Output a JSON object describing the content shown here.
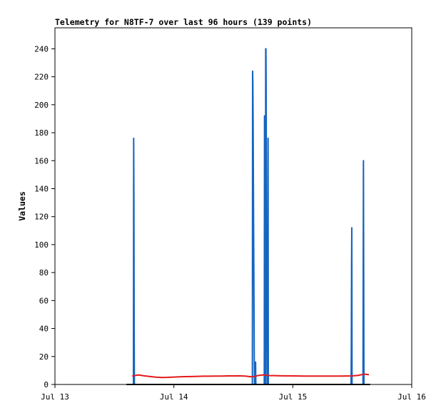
{
  "chart_data": {
    "type": "line",
    "title": "Telemetry for N8TF-7 over last 96 hours (139 points)",
    "xlabel": "",
    "ylabel": "Values",
    "x_ticks": [
      "Jul 13",
      "Jul 14",
      "Jul 15",
      "Jul 16"
    ],
    "y_ticks": [
      0,
      20,
      40,
      60,
      80,
      100,
      120,
      140,
      160,
      180,
      200,
      220,
      240
    ],
    "xlim_days": [
      0,
      3
    ],
    "ylim": [
      0,
      255
    ],
    "grid": false,
    "legend": "none",
    "series": [
      {
        "color": "#1565c0",
        "points": [
          [
            0.66,
            0
          ],
          [
            0.662,
            176
          ],
          [
            0.664,
            132
          ],
          [
            0.666,
            45
          ],
          [
            0.668,
            0
          ],
          [
            1.66,
            0
          ],
          [
            1.662,
            224
          ],
          [
            1.664,
            216
          ],
          [
            1.666,
            190
          ],
          [
            1.668,
            155
          ],
          [
            1.67,
            120
          ],
          [
            1.672,
            87
          ],
          [
            1.674,
            52
          ],
          [
            1.676,
            17
          ],
          [
            1.678,
            0
          ],
          [
            1.685,
            0
          ],
          [
            1.687,
            16
          ],
          [
            1.689,
            0
          ],
          [
            1.76,
            0
          ],
          [
            1.762,
            192
          ],
          [
            1.764,
            180
          ],
          [
            1.766,
            0
          ],
          [
            1.77,
            0
          ],
          [
            1.772,
            240
          ],
          [
            1.774,
            240
          ],
          [
            1.776,
            210
          ],
          [
            1.778,
            150
          ],
          [
            1.78,
            90
          ],
          [
            1.782,
            30
          ],
          [
            1.784,
            0
          ],
          [
            1.79,
            0
          ],
          [
            1.792,
            176
          ],
          [
            1.794,
            0
          ],
          [
            2.49,
            0
          ],
          [
            2.492,
            28
          ],
          [
            2.494,
            84
          ],
          [
            2.496,
            112
          ],
          [
            2.498,
            0
          ],
          [
            2.59,
            0
          ],
          [
            2.592,
            80
          ],
          [
            2.594,
            160
          ],
          [
            2.596,
            80
          ],
          [
            2.598,
            0
          ]
        ]
      },
      {
        "color": "#e41a1c",
        "points": [
          [
            0.65,
            6
          ],
          [
            0.7,
            6.8
          ],
          [
            0.75,
            6.2
          ],
          [
            0.8,
            5.7
          ],
          [
            0.85,
            5.2
          ],
          [
            0.9,
            5.0
          ],
          [
            0.95,
            5.1
          ],
          [
            1.0,
            5.3
          ],
          [
            1.05,
            5.5
          ],
          [
            1.1,
            5.6
          ],
          [
            1.15,
            5.7
          ],
          [
            1.2,
            5.8
          ],
          [
            1.25,
            5.9
          ],
          [
            1.3,
            5.9
          ],
          [
            1.35,
            6.0
          ],
          [
            1.4,
            6.0
          ],
          [
            1.45,
            6.1
          ],
          [
            1.5,
            6.1
          ],
          [
            1.55,
            6.2
          ],
          [
            1.6,
            6.0
          ],
          [
            1.65,
            5.5
          ],
          [
            1.68,
            5.8
          ],
          [
            1.72,
            6.6
          ],
          [
            1.75,
            6.8
          ],
          [
            1.78,
            6.6
          ],
          [
            1.8,
            6.4
          ],
          [
            1.85,
            6.3
          ],
          [
            1.9,
            6.2
          ],
          [
            2.0,
            6.1
          ],
          [
            2.1,
            6.0
          ],
          [
            2.2,
            6.0
          ],
          [
            2.3,
            6.0
          ],
          [
            2.4,
            6.0
          ],
          [
            2.5,
            6.1
          ],
          [
            2.55,
            6.5
          ],
          [
            2.6,
            7.4
          ],
          [
            2.64,
            7.0
          ]
        ]
      },
      {
        "color": "#000000",
        "points": [
          [
            0.6,
            0
          ],
          [
            2.65,
            0
          ]
        ]
      }
    ]
  }
}
